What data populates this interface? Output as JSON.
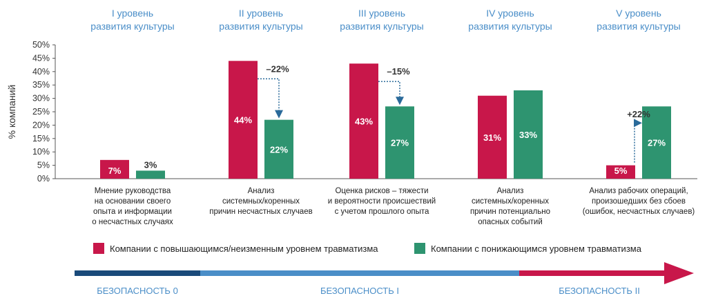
{
  "chart_data": {
    "type": "bar",
    "ylabel": "% компаний",
    "ylim": [
      0,
      50
    ],
    "yticks": [
      "0%",
      "5%",
      "10%",
      "15%",
      "20%",
      "25%",
      "30%",
      "35%",
      "40%",
      "45%",
      "50%"
    ],
    "grid": false,
    "categories": [
      {
        "level": [
          "I уровень",
          "развития культуры"
        ],
        "description": [
          "Мнение руководства",
          "на основании своего",
          "опыта и информации",
          "о несчастных случаях"
        ]
      },
      {
        "level": [
          "II уровень",
          "развития культуры"
        ],
        "description": [
          "Анализ",
          "системных/коренных",
          "причин несчастных случаев"
        ]
      },
      {
        "level": [
          "III уровень",
          "развития культуры"
        ],
        "description": [
          "Оценка рисков – тяжести",
          "и вероятности происшествий",
          "с учетом прошлого опыта"
        ]
      },
      {
        "level": [
          "IV уровень",
          "развития культуры"
        ],
        "description": [
          "Анализ",
          "системных/коренных",
          "причин потенциально",
          "опасных событий"
        ]
      },
      {
        "level": [
          "V уровень",
          "развития культуры"
        ],
        "description": [
          "Анализ рабочих операций,",
          "произошедших без сбоев",
          "(ошибок, несчастных случаев)"
        ]
      }
    ],
    "series": [
      {
        "name": "Компании с повышающимся/неизменным уровнем травматизма",
        "color": "#c8174a",
        "values": [
          7,
          44,
          43,
          31,
          5
        ],
        "labels": [
          "7%",
          "44%",
          "43%",
          "31%",
          "5%"
        ]
      },
      {
        "name": "Компании с понижающимся уровнем травматизма",
        "color": "#2e9470",
        "values": [
          3,
          22,
          27,
          33,
          27
        ],
        "labels": [
          "3%",
          "22%",
          "27%",
          "33%",
          "27%"
        ]
      }
    ],
    "annotations": [
      {
        "category": 1,
        "text": "–22%",
        "direction": "down"
      },
      {
        "category": 2,
        "text": "–15%",
        "direction": "down"
      },
      {
        "category": 4,
        "text": "+22%",
        "direction": "up"
      }
    ],
    "legend_position": "bottom"
  },
  "safety_scale": {
    "segments": [
      {
        "label": "БЕЗОПАСНОСТЬ 0",
        "color": "#1a4a7a"
      },
      {
        "label": "БЕЗОПАСНОСТЬ I",
        "color": "#4a8ec8"
      },
      {
        "label": "БЕЗОПАСНОСТЬ II",
        "color": "#c8174a"
      }
    ]
  }
}
